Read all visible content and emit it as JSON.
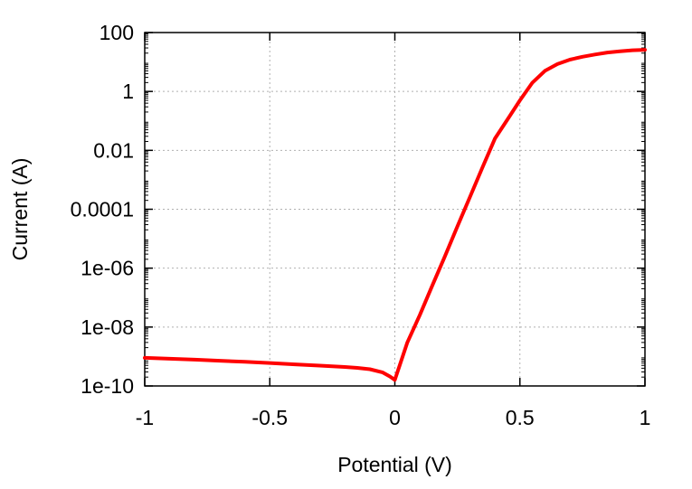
{
  "chart_data": {
    "type": "line",
    "title": "",
    "xlabel": "Potential (V)",
    "ylabel": "Current (A)",
    "xlim": [
      -1,
      1
    ],
    "ylim": [
      1e-10,
      100
    ],
    "yscale": "log",
    "grid": true,
    "x_ticks": [
      -1,
      -0.5,
      0,
      0.5,
      1
    ],
    "x_tick_labels": [
      "-1",
      "-0.5",
      "0",
      "0.5",
      "1"
    ],
    "y_ticks": [
      1e-10,
      1e-08,
      1e-06,
      0.0001,
      0.01,
      1,
      100
    ],
    "y_tick_labels": [
      "1e-10",
      "1e-08",
      "1e-06",
      "0.0001",
      "0.01",
      "1",
      "100"
    ],
    "series": [
      {
        "color": "#ff0000",
        "x": [
          -1.0,
          -0.9,
          -0.8,
          -0.7,
          -0.6,
          -0.5,
          -0.4,
          -0.3,
          -0.2,
          -0.15,
          -0.1,
          -0.05,
          -0.02,
          0.0,
          0.05,
          0.1,
          0.15,
          0.2,
          0.25,
          0.3,
          0.35,
          0.4,
          0.45,
          0.5,
          0.55,
          0.6,
          0.65,
          0.7,
          0.75,
          0.8,
          0.85,
          0.9,
          0.95,
          1.0
        ],
        "y": [
          9e-10,
          8.4e-10,
          7.8e-10,
          7.2e-10,
          6.6e-10,
          6e-10,
          5.4e-10,
          4.9e-10,
          4.4e-10,
          4.1e-10,
          3.7e-10,
          2.9e-10,
          2.1e-10,
          1.6e-10,
          3e-09,
          2.6e-08,
          2.6e-07,
          2.5e-06,
          2.6e-05,
          0.00026,
          0.0026,
          0.025,
          0.11,
          0.5,
          2.0,
          5.0,
          8.5,
          12.0,
          15.0,
          18.0,
          21.0,
          23.0,
          25.0,
          26.0
        ]
      }
    ]
  }
}
